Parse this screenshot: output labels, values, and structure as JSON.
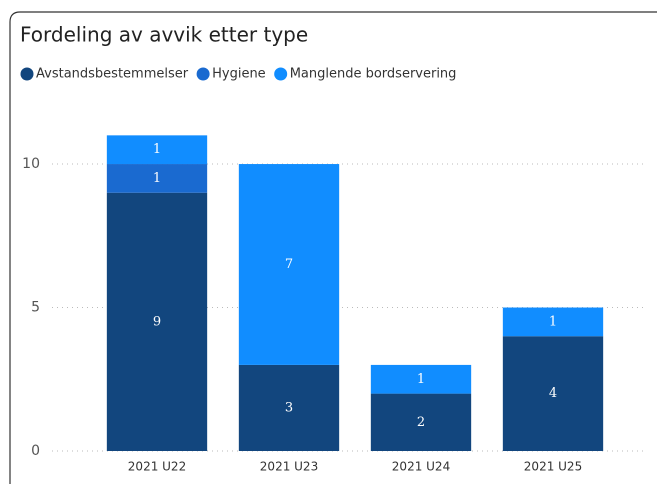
{
  "chart_data": {
    "type": "stacked_bar",
    "title": "Fordeling av avvik etter type",
    "categories": [
      "2021 U22",
      "2021 U23",
      "2021 U24",
      "2021 U25"
    ],
    "series": [
      {
        "name": "Avstandsbestemmelser",
        "color": "#12467e",
        "values": [
          9,
          3,
          2,
          4
        ]
      },
      {
        "name": "Hygiene",
        "color": "#1a6ad0",
        "values": [
          1,
          null,
          null,
          null
        ]
      },
      {
        "name": "Manglende bordservering",
        "color": "#118dff",
        "values": [
          1,
          7,
          1,
          1
        ]
      }
    ],
    "ylim": [
      0,
      11.5
    ],
    "yticks": [
      0,
      5,
      10
    ],
    "grid": true,
    "legend": "top-left"
  }
}
